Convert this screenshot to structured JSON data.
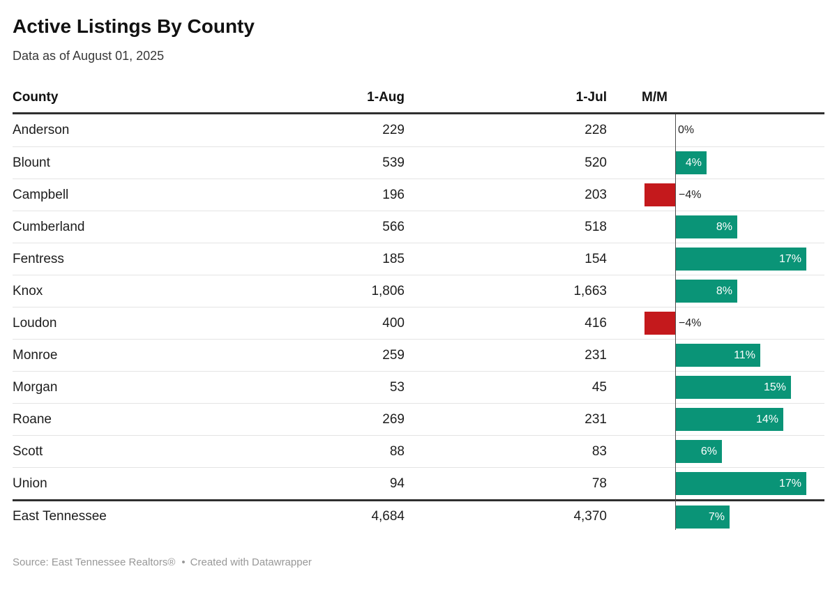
{
  "header": {
    "title": "Active Listings By County",
    "subtitle": "Data as of August 01, 2025"
  },
  "table": {
    "columns": [
      "County",
      "1-Aug",
      "1-Jul",
      "M/M"
    ],
    "rows": [
      {
        "county": "Anderson",
        "aug": "229",
        "jul": "228",
        "mm": 0,
        "mm_label": "0%",
        "total": false
      },
      {
        "county": "Blount",
        "aug": "539",
        "jul": "520",
        "mm": 4,
        "mm_label": "4%",
        "total": false
      },
      {
        "county": "Campbell",
        "aug": "196",
        "jul": "203",
        "mm": -4,
        "mm_label": "−4%",
        "total": false
      },
      {
        "county": "Cumberland",
        "aug": "566",
        "jul": "518",
        "mm": 8,
        "mm_label": "8%",
        "total": false
      },
      {
        "county": "Fentress",
        "aug": "185",
        "jul": "154",
        "mm": 17,
        "mm_label": "17%",
        "total": false
      },
      {
        "county": "Knox",
        "aug": "1,806",
        "jul": "1,663",
        "mm": 8,
        "mm_label": "8%",
        "total": false
      },
      {
        "county": "Loudon",
        "aug": "400",
        "jul": "416",
        "mm": -4,
        "mm_label": "−4%",
        "total": false
      },
      {
        "county": "Monroe",
        "aug": "259",
        "jul": "231",
        "mm": 11,
        "mm_label": "11%",
        "total": false
      },
      {
        "county": "Morgan",
        "aug": "53",
        "jul": "45",
        "mm": 15,
        "mm_label": "15%",
        "total": false
      },
      {
        "county": "Roane",
        "aug": "269",
        "jul": "231",
        "mm": 14,
        "mm_label": "14%",
        "total": false
      },
      {
        "county": "Scott",
        "aug": "88",
        "jul": "83",
        "mm": 6,
        "mm_label": "6%",
        "total": false
      },
      {
        "county": "Union",
        "aug": "94",
        "jul": "78",
        "mm": 17,
        "mm_label": "17%",
        "total": false
      },
      {
        "county": "East Tennessee",
        "aug": "4,684",
        "jul": "4,370",
        "mm": 7,
        "mm_label": "7%",
        "total": true
      }
    ]
  },
  "chart_data": {
    "type": "table",
    "title": "Active Listings By County",
    "subtitle": "Data as of August 01, 2025",
    "columns": [
      "County",
      "1-Aug",
      "1-Jul",
      "M/M"
    ],
    "categories": [
      "Anderson",
      "Blount",
      "Campbell",
      "Cumberland",
      "Fentress",
      "Knox",
      "Loudon",
      "Monroe",
      "Morgan",
      "Roane",
      "Scott",
      "Union",
      "East Tennessee"
    ],
    "series": [
      {
        "name": "1-Aug",
        "values": [
          229,
          539,
          196,
          566,
          185,
          1806,
          400,
          259,
          53,
          269,
          88,
          94,
          4684
        ]
      },
      {
        "name": "1-Jul",
        "values": [
          228,
          520,
          203,
          518,
          154,
          1663,
          416,
          231,
          45,
          231,
          83,
          78,
          4370
        ]
      },
      {
        "name": "M/M % change",
        "values": [
          0,
          4,
          -4,
          8,
          17,
          8,
          -4,
          11,
          15,
          14,
          6,
          17,
          7
        ]
      }
    ],
    "bar_axis": {
      "zero_baseline": true,
      "max_percent": 17
    },
    "positive_color": "#0a9477",
    "negative_color": "#c4191c",
    "baseline_color": "#4d4d4d"
  },
  "footer": {
    "source": "Source: East Tennessee Realtors®",
    "separator": "•",
    "attribution": "Created with Datawrapper"
  }
}
